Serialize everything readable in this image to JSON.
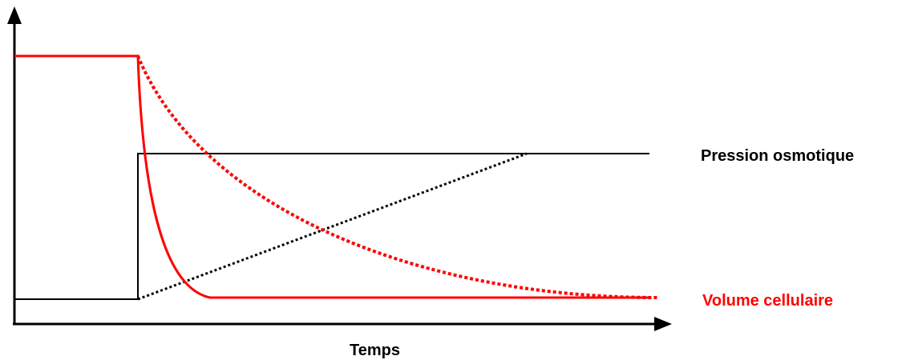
{
  "labels": {
    "pression": "Pression osmotique",
    "volume": "Volume cellulaire",
    "temps": "Temps"
  },
  "colors": {
    "volume": "#ff0000",
    "pression": "#000000",
    "axes": "#000000"
  }
}
